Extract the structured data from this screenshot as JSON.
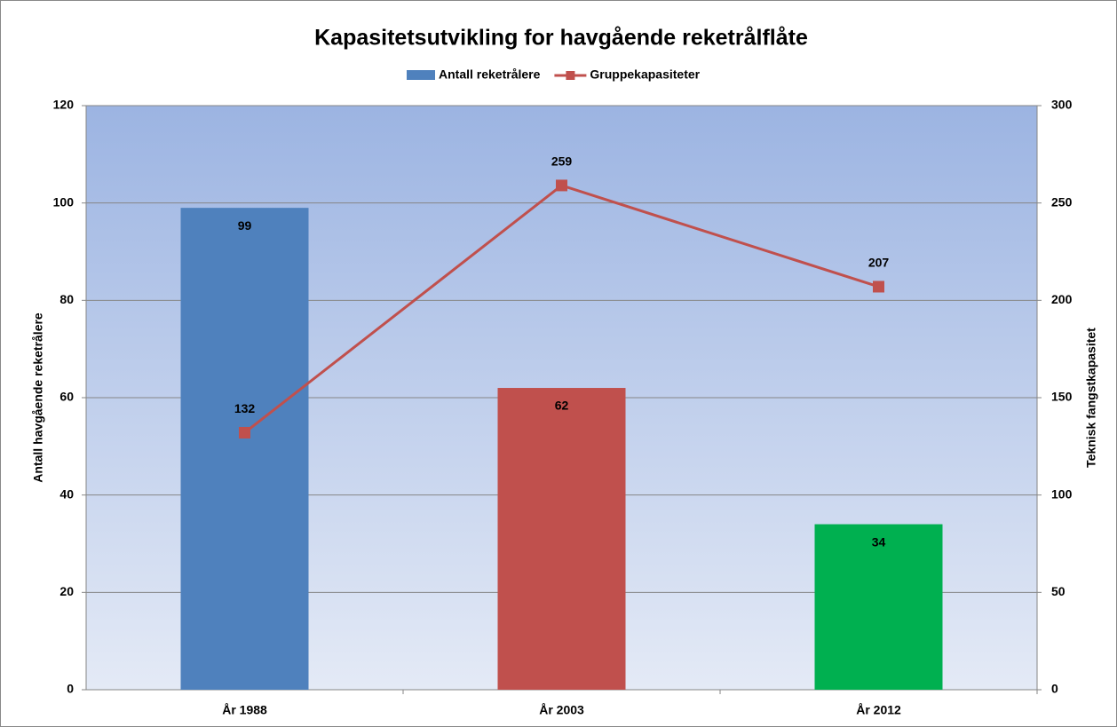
{
  "chart_data": {
    "type": "bar",
    "title": "Kapasitetsutvikling for havgående reketrålflåte",
    "categories": [
      "År 1988",
      "År 2003",
      "År 2012"
    ],
    "series": [
      {
        "name": "Antall reketrålere",
        "type": "bar",
        "color": "#4f81bd",
        "colors": [
          "#4f81bd",
          "#c0504d",
          "#00b050"
        ],
        "values": [
          99,
          62,
          34
        ]
      },
      {
        "name": "Gruppekapasiteter",
        "type": "line",
        "axis": "y2",
        "color": "#c0504d",
        "values": [
          132,
          259,
          207
        ]
      }
    ],
    "y_label": "Antall havgående  reketrålere",
    "y2_label": "Teknisk fangstkapasitet",
    "ylim": [
      0,
      120
    ],
    "yticks": [
      0,
      20,
      40,
      60,
      80,
      100,
      120
    ],
    "y2lim": [
      0,
      300
    ],
    "y2ticks": [
      0,
      50,
      100,
      150,
      200,
      250,
      300
    ],
    "grid": true,
    "legend": "top"
  }
}
